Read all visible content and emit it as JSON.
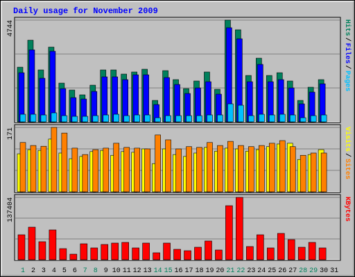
{
  "chart_data": [
    {
      "type": "bar",
      "title": "Daily usage for November 2009",
      "ylim": [
        0,
        4744
      ],
      "yticks": [
        4744
      ],
      "legend_separator": "/",
      "series": [
        {
          "name": "Hits",
          "color": "#00805c",
          "values": [
            2549,
            3808,
            2420,
            3485,
            1807,
            1484,
            1259,
            1710,
            2420,
            2420,
            2227,
            2324,
            2453,
            1000,
            2388,
            1969,
            1549,
            1904,
            2324,
            1517,
            4744,
            4292,
            2162,
            2969,
            2162,
            2291,
            1904,
            1000,
            1614,
            1969,
            null
          ]
        },
        {
          "name": "Files",
          "color": "#0000ff",
          "values": [
            2291,
            3356,
            2033,
            3292,
            1549,
            1130,
            1065,
            1420,
            2098,
            2098,
            1969,
            2194,
            2194,
            807,
            2065,
            1743,
            1323,
            1581,
            1872,
            1291,
            4389,
            3873,
            1872,
            2679,
            1872,
            1969,
            1581,
            839,
            1388,
            1775,
            null
          ]
        },
        {
          "name": "Pages",
          "color": "#00c0ff",
          "values": [
            355,
            355,
            323,
            420,
            290,
            258,
            258,
            290,
            323,
            355,
            290,
            323,
            323,
            194,
            290,
            290,
            290,
            290,
            323,
            323,
            839,
            774,
            290,
            355,
            323,
            355,
            323,
            194,
            290,
            323,
            null
          ]
        }
      ]
    },
    {
      "type": "bar",
      "ylim": [
        0,
        171
      ],
      "yticks": [
        171
      ],
      "legend_separator": "/",
      "series": [
        {
          "name": "Visits",
          "color": "#ffff00",
          "values": [
            101,
            112,
            110,
            140,
            103,
            88,
            94,
            107,
            110,
            97,
            107,
            105,
            114,
            75,
            114,
            99,
            94,
            103,
            118,
            108,
            116,
            114,
            108,
            112,
            120,
            127,
            129,
            86,
            99,
            112,
            null
          ]
        },
        {
          "name": "Sites",
          "color": "#ff8000",
          "values": [
            131,
            123,
            121,
            171,
            156,
            116,
            99,
            112,
            116,
            129,
            118,
            116,
            114,
            151,
            138,
            114,
            120,
            118,
            131,
            123,
            134,
            123,
            120,
            123,
            129,
            136,
            120,
            97,
            103,
            103,
            null
          ]
        }
      ]
    },
    {
      "type": "bar",
      "ylim": [
        0,
        137404
      ],
      "yticks": [
        137404
      ],
      "categories": [
        "1",
        "2",
        "3",
        "4",
        "5",
        "6",
        "7",
        "8",
        "9",
        "10",
        "11",
        "12",
        "13",
        "14",
        "15",
        "16",
        "17",
        "18",
        "19",
        "20",
        "21",
        "22",
        "23",
        "24",
        "25",
        "26",
        "27",
        "28",
        "29",
        "30",
        "31"
      ],
      "highlight_indices": [
        0,
        6,
        7,
        13,
        14,
        20,
        21,
        27,
        28
      ],
      "highlight_color": "#00805c",
      "series": [
        {
          "name": "KBytes",
          "color": "#ff0000",
          "values": [
            54962,
            71756,
            39694,
            65649,
            24427,
            12214,
            35114,
            25954,
            33588,
            36641,
            38168,
            25954,
            36641,
            15267,
            36641,
            22901,
            19847,
            27481,
            41221,
            21374,
            119083,
            137404,
            29007,
            54962,
            25954,
            58015,
            44275,
            27481,
            38168,
            25954,
            null
          ]
        }
      ]
    }
  ]
}
